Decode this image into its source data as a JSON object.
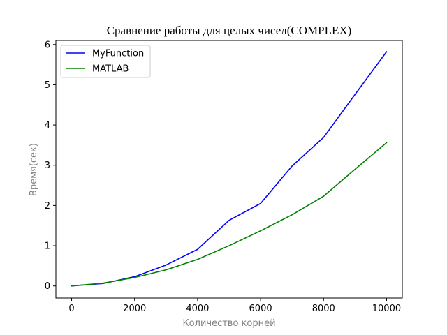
{
  "chart_data": {
    "type": "line",
    "title": "Сравнение работы для целых чисел(COMPLEX)",
    "xlabel": "Количество корней",
    "ylabel": "Время(сек)",
    "xlim": [
      -500,
      10500
    ],
    "ylim": [
      -0.3,
      6.1
    ],
    "xticks": [
      0,
      2000,
      4000,
      6000,
      8000,
      10000
    ],
    "yticks": [
      0,
      1,
      2,
      3,
      4,
      5,
      6
    ],
    "grid": false,
    "legend_position": "top-left",
    "x": [
      0,
      1000,
      2000,
      3000,
      4000,
      5000,
      6000,
      7000,
      8000,
      9000,
      10000
    ],
    "series": [
      {
        "name": "MyFunction",
        "color": "#0000ff",
        "values": [
          0.0,
          0.06,
          0.23,
          0.52,
          0.91,
          1.63,
          2.05,
          2.98,
          3.69,
          4.76,
          5.82
        ]
      },
      {
        "name": "MATLAB",
        "color": "#008000",
        "values": [
          0.0,
          0.07,
          0.21,
          0.4,
          0.66,
          1.0,
          1.37,
          1.77,
          2.23,
          2.9,
          3.56
        ]
      }
    ]
  }
}
